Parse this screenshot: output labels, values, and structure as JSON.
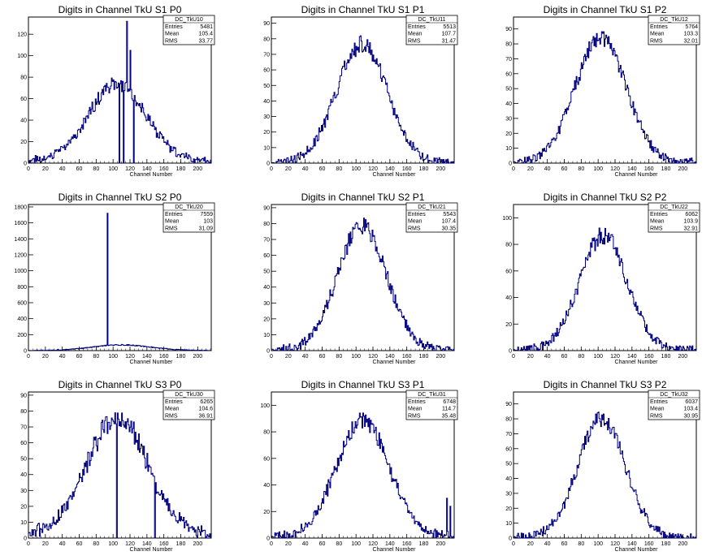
{
  "chart_data": [
    {
      "type": "bar",
      "title": "Digits in Channel TkU S1 P0",
      "xlabel": "Channel Number",
      "ylabel": "",
      "xlim": [
        0,
        216
      ],
      "ylim": [
        0,
        136
      ],
      "xticks": [
        0,
        20,
        40,
        60,
        80,
        100,
        120,
        140,
        160,
        180,
        200
      ],
      "yticks": [
        0,
        20,
        40,
        60,
        80,
        100,
        120
      ],
      "stats": {
        "name": "DC_TkU10",
        "entries": "5481",
        "mean": "105.4",
        "rms": "33.77"
      },
      "mean": 105,
      "sigma": 34,
      "peak": 72,
      "noise": 6,
      "base": 3,
      "spikes": [
        [
          107,
          0
        ],
        [
          112,
          0
        ],
        [
          116,
          132
        ],
        [
          120,
          105
        ],
        [
          124,
          0
        ]
      ]
    },
    {
      "type": "bar",
      "title": "Digits in Channel TkU S1 P1",
      "xlabel": "Channel Number",
      "ylabel": "",
      "xlim": [
        0,
        216
      ],
      "ylim": [
        0,
        94
      ],
      "xticks": [
        0,
        20,
        40,
        60,
        80,
        100,
        120,
        140,
        160,
        180,
        200
      ],
      "yticks": [
        0,
        10,
        20,
        30,
        40,
        50,
        60,
        70,
        80,
        90
      ],
      "stats": {
        "name": "DC_TkU11",
        "entries": "5513",
        "mean": "107.7",
        "rms": "31.47"
      },
      "mean": 107,
      "sigma": 30,
      "peak": 76,
      "noise": 5,
      "base": 1,
      "spikes": []
    },
    {
      "type": "bar",
      "title": "Digits in Channel TkU S1 P2",
      "xlabel": "Channel Number",
      "ylabel": "",
      "xlim": [
        0,
        216
      ],
      "ylim": [
        0,
        98
      ],
      "xticks": [
        0,
        20,
        40,
        60,
        80,
        100,
        120,
        140,
        160,
        180,
        200
      ],
      "yticks": [
        0,
        10,
        20,
        30,
        40,
        50,
        60,
        70,
        80,
        90
      ],
      "stats": {
        "name": "DC_TkU12",
        "entries": "5764",
        "mean": "103.3",
        "rms": "32.01"
      },
      "mean": 103,
      "sigma": 30,
      "peak": 84,
      "noise": 5,
      "base": 1,
      "spikes": []
    },
    {
      "type": "bar",
      "title": "Digits in Channel TkU S2 P0",
      "xlabel": "Channel Number",
      "ylabel": "",
      "xlim": [
        0,
        216
      ],
      "ylim": [
        0,
        1830
      ],
      "xticks": [
        0,
        20,
        40,
        60,
        80,
        100,
        120,
        140,
        160,
        180,
        200
      ],
      "yticks": [
        0,
        200,
        400,
        600,
        800,
        1000,
        1200,
        1400,
        1600,
        1800
      ],
      "stats": {
        "name": "DC_TkU20",
        "entries": "7559",
        "mean": "103",
        "rms": "31.09"
      },
      "mean": 110,
      "sigma": 34,
      "peak": 70,
      "noise": 6,
      "base": 3,
      "spikes": [
        [
          93,
          1720
        ]
      ]
    },
    {
      "type": "bar",
      "title": "Digits in Channel TkU S2 P1",
      "xlabel": "Channel Number",
      "ylabel": "",
      "xlim": [
        0,
        216
      ],
      "ylim": [
        0,
        92
      ],
      "xticks": [
        0,
        20,
        40,
        60,
        80,
        100,
        120,
        140,
        160,
        180,
        200
      ],
      "yticks": [
        0,
        10,
        20,
        30,
        40,
        50,
        60,
        70,
        80,
        90
      ],
      "stats": {
        "name": "DC_TkU21",
        "entries": "5543",
        "mean": "107.4",
        "rms": "30.35"
      },
      "mean": 107,
      "sigma": 29,
      "peak": 78,
      "noise": 5,
      "base": 1,
      "spikes": []
    },
    {
      "type": "bar",
      "title": "Digits in Channel TkU S2 P2",
      "xlabel": "Channel Number",
      "ylabel": "",
      "xlim": [
        0,
        216
      ],
      "ylim": [
        0,
        110
      ],
      "xticks": [
        0,
        20,
        40,
        60,
        80,
        100,
        120,
        140,
        160,
        180,
        200
      ],
      "yticks": [
        0,
        20,
        40,
        60,
        80,
        100
      ],
      "stats": {
        "name": "DC_TkU22",
        "entries": "6062",
        "mean": "103.9",
        "rms": "32.91"
      },
      "mean": 106,
      "sigma": 28,
      "peak": 86,
      "noise": 6,
      "base": 1,
      "spikes": []
    },
    {
      "type": "bar",
      "title": "Digits in Channel TkU S3 P0",
      "xlabel": "Channel Number",
      "ylabel": "",
      "xlim": [
        0,
        216
      ],
      "ylim": [
        0,
        92
      ],
      "xticks": [
        0,
        20,
        40,
        60,
        80,
        100,
        120,
        140,
        160,
        180,
        200
      ],
      "yticks": [
        0,
        10,
        20,
        30,
        40,
        50,
        60,
        70,
        80,
        90
      ],
      "stats": {
        "name": "DC_TkU30",
        "entries": "6265",
        "mean": "104.6",
        "rms": "36.91"
      },
      "mean": 105,
      "sigma": 36,
      "peak": 74,
      "noise": 6,
      "base": 4,
      "spikes": [
        [
          104,
          0
        ],
        [
          149,
          0
        ]
      ]
    },
    {
      "type": "bar",
      "title": "Digits in Channel TkU S3 P1",
      "xlabel": "Channel Number",
      "ylabel": "",
      "xlim": [
        0,
        216
      ],
      "ylim": [
        0,
        110
      ],
      "xticks": [
        0,
        20,
        40,
        60,
        80,
        100,
        120,
        140,
        160,
        180,
        200
      ],
      "yticks": [
        0,
        20,
        40,
        60,
        80,
        100
      ],
      "stats": {
        "name": "DC_TkU31",
        "entries": "6748",
        "mean": "114.7",
        "rms": "35.48"
      },
      "mean": 108,
      "sigma": 31,
      "peak": 88,
      "noise": 6,
      "base": 2,
      "spikes": [
        [
          207,
          30
        ],
        [
          211,
          24
        ]
      ]
    },
    {
      "type": "bar",
      "title": "Digits in Channel TkU S3 P2",
      "xlabel": "Channel Number",
      "ylabel": "",
      "xlim": [
        0,
        216
      ],
      "ylim": [
        0,
        98
      ],
      "xticks": [
        0,
        20,
        40,
        60,
        80,
        100,
        120,
        140,
        160,
        180,
        200
      ],
      "yticks": [
        0,
        10,
        20,
        30,
        40,
        50,
        60,
        70,
        80,
        90
      ],
      "stats": {
        "name": "DC_TkU32",
        "entries": "6037",
        "mean": "103.4",
        "rms": "30.95"
      },
      "mean": 104,
      "sigma": 28,
      "peak": 80,
      "noise": 5,
      "base": 1,
      "spikes": [
        [
          60,
          20
        ]
      ]
    }
  ],
  "stat_labels": {
    "entries": "Entries",
    "mean": "Mean",
    "rms": "RMS"
  },
  "colors": {
    "line": "#000080",
    "axis": "#000000",
    "background": "#ffffff"
  }
}
